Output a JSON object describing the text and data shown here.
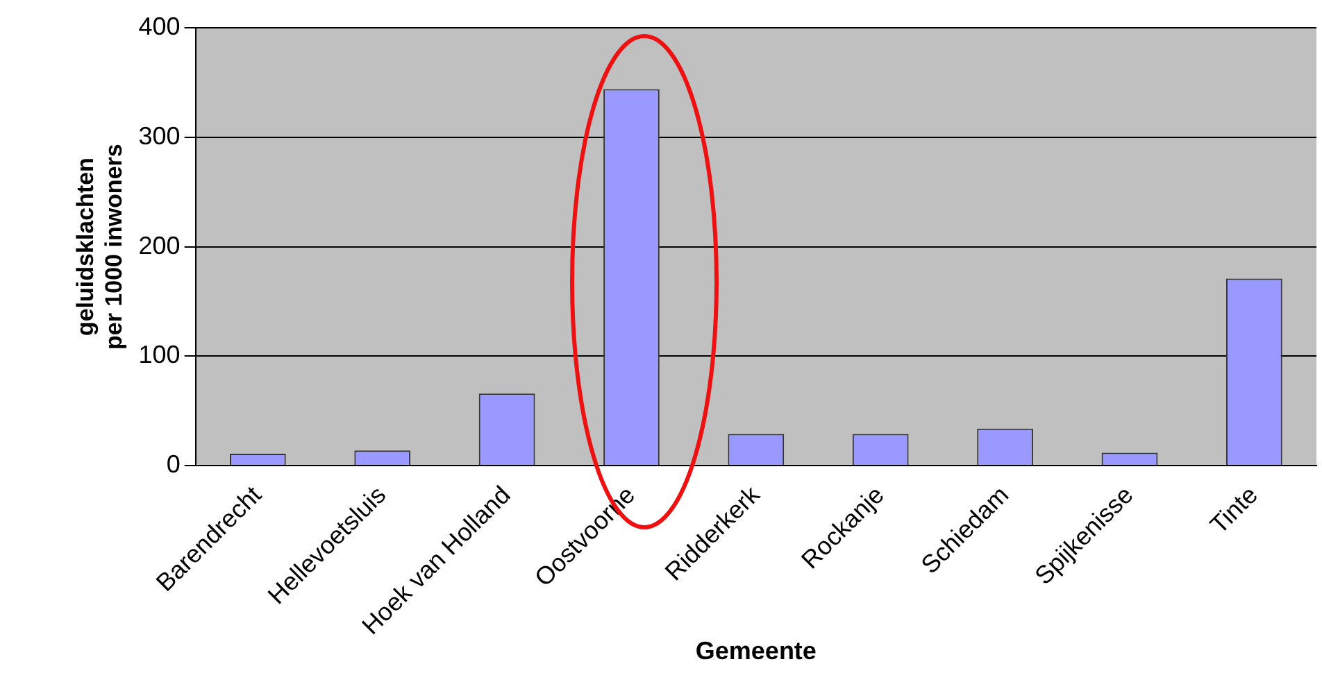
{
  "chart_data": {
    "type": "bar",
    "xlabel": "Gemeente",
    "ylabel": "geluidsklachten\nper 1000 inwoners",
    "categories": [
      "Barendrecht",
      "Hellevoetsluis",
      "Hoek van Holland",
      "Oostvoorne",
      "Ridderkerk",
      "Rockanje",
      "Schiedam",
      "Spijkenisse",
      "Tinte"
    ],
    "values": [
      11,
      14,
      66,
      344,
      29,
      29,
      34,
      12,
      171
    ],
    "color": "#9999ff",
    "ylim": [
      0,
      400
    ],
    "yticks": [
      0,
      100,
      200,
      300,
      400
    ],
    "grid": "y",
    "legend": false
  }
}
